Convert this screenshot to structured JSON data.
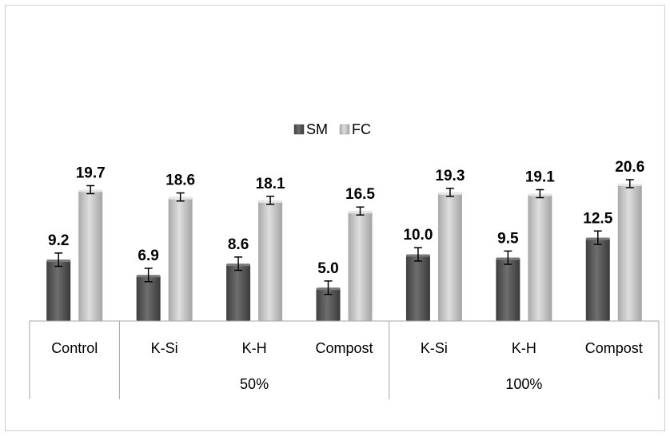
{
  "chart_data": {
    "type": "bar",
    "groups": [
      {
        "label": "",
        "categories": [
          "Control"
        ]
      },
      {
        "label": "50%",
        "categories": [
          "K-Si",
          "K-H",
          "Compost"
        ]
      },
      {
        "label": "100%",
        "categories": [
          "K-Si",
          "K-H",
          "Compost"
        ]
      }
    ],
    "categories": [
      "Control",
      "K-Si",
      "K-H",
      "Compost",
      "K-Si",
      "K-H",
      "Compost"
    ],
    "series": [
      {
        "name": "SM",
        "color": "#5a5a5a",
        "values": [
          9.2,
          6.9,
          8.6,
          5.0,
          10.0,
          9.5,
          12.5
        ],
        "errors": [
          1.0,
          1.0,
          1.0,
          1.0,
          1.0,
          1.0,
          1.0
        ]
      },
      {
        "name": "FC",
        "color": "#bfbfbf",
        "values": [
          19.7,
          18.6,
          18.1,
          16.5,
          19.3,
          19.1,
          20.6
        ],
        "errors": [
          0.6,
          0.6,
          0.6,
          0.6,
          0.6,
          0.6,
          0.6
        ]
      }
    ],
    "legend": "top-center",
    "data_labels": true,
    "value_axis_visible": false,
    "grid": false,
    "ylim": [
      0,
      20.6
    ]
  }
}
